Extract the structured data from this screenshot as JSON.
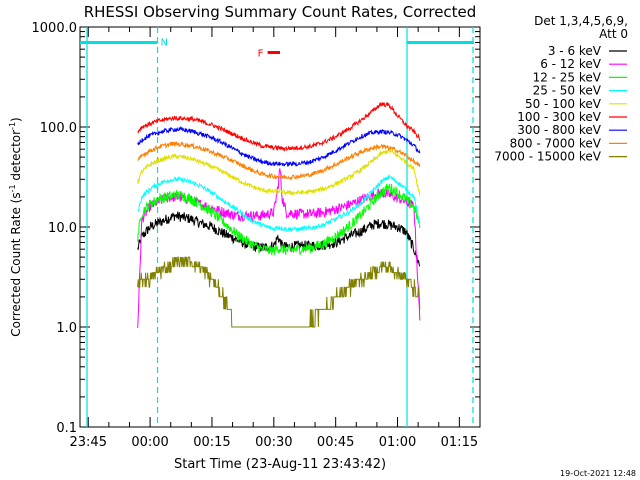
{
  "chart_data": {
    "type": "line",
    "title": "RHESSI Observing Summary Count Rates, Corrected",
    "xlabel": "Start Time (23-Aug-11 23:43:42)",
    "ylabel_main": "Corrected Count Rate (s",
    "ylabel_sup1": "-1",
    "ylabel_mid": " detector",
    "ylabel_sup2": "-1",
    "ylabel_end": ")",
    "ylabel": "Corrected Count Rate (s-1 detector-1)",
    "yscale": "log",
    "ylim": [
      0.1,
      1000
    ],
    "xlim_minutes": [
      -17,
      80
    ],
    "x_ticks": [
      {
        "minute": -15,
        "label": "23:45"
      },
      {
        "minute": 0,
        "label": "00:00"
      },
      {
        "minute": 15,
        "label": "00:15"
      },
      {
        "minute": 30,
        "label": "00:30"
      },
      {
        "minute": 45,
        "label": "00:45"
      },
      {
        "minute": 60,
        "label": "01:00"
      },
      {
        "minute": 75,
        "label": "01:15"
      }
    ],
    "y_ticks": [
      {
        "value": 0.1,
        "label": "0.1"
      },
      {
        "value": 1,
        "label": "1.0"
      },
      {
        "value": 10,
        "label": "10.0"
      },
      {
        "value": 100,
        "label": "100.0"
      },
      {
        "value": 1000,
        "label": "1000.0"
      }
    ],
    "legend_header": [
      "Det 1,3,4,5,6,9,",
      "Att 0"
    ],
    "legend_position": "right",
    "series": [
      {
        "name": "3 - 6 keV",
        "color": "#000000",
        "x": [
          -3,
          -2,
          0,
          2,
          4,
          6,
          8,
          10,
          12,
          15,
          18,
          21,
          24,
          27,
          30,
          31,
          32,
          33,
          36,
          39,
          42,
          45,
          48,
          51,
          54,
          56,
          58,
          60,
          62,
          64,
          65.5
        ],
        "y": [
          6,
          8,
          10,
          11,
          12,
          13,
          12.5,
          12,
          11,
          10,
          8.5,
          7.5,
          6.5,
          6.2,
          6.5,
          8,
          6.5,
          6.3,
          6.5,
          6.5,
          6.6,
          7,
          8,
          9,
          10.5,
          11,
          10.5,
          10,
          9,
          6,
          4
        ]
      },
      {
        "name": "6 - 12 keV",
        "color": "#ff00ff",
        "x": [
          -3,
          -2,
          0,
          2,
          4,
          6,
          8,
          10,
          12,
          15,
          18,
          21,
          24,
          27,
          30,
          31,
          31.5,
          32,
          33,
          36,
          39,
          42,
          45,
          48,
          51,
          54,
          56,
          58,
          60,
          62,
          64,
          65.5
        ],
        "y": [
          1,
          12,
          16,
          18,
          19.5,
          20,
          19.5,
          18.5,
          17,
          15.5,
          14,
          13,
          13,
          13,
          14,
          25,
          40,
          20,
          14,
          13.5,
          13.5,
          14,
          15,
          16.5,
          18.5,
          21,
          22,
          21,
          19.5,
          18,
          16,
          1
        ]
      },
      {
        "name": "12 - 25 keV",
        "color": "#00ff00",
        "x": [
          -3,
          -2,
          0,
          2,
          4,
          6,
          8,
          10,
          12,
          15,
          18,
          21,
          24,
          27,
          30,
          31,
          32,
          33,
          36,
          39,
          42,
          45,
          48,
          51,
          54,
          56,
          58,
          60,
          62,
          64,
          65.5
        ],
        "y": [
          8,
          14,
          17,
          19,
          20,
          21,
          20.5,
          19,
          17,
          14,
          11,
          8.5,
          7,
          6,
          5.8,
          6.2,
          6,
          5.8,
          6,
          6.2,
          6.8,
          8,
          10,
          13,
          18,
          22,
          25,
          22,
          19,
          16,
          10
        ]
      },
      {
        "name": "25 - 50 keV",
        "color": "#00ffff",
        "x": [
          -3,
          -2,
          0,
          2,
          4,
          6,
          8,
          10,
          12,
          15,
          18,
          21,
          24,
          27,
          30,
          31,
          32,
          33,
          36,
          39,
          42,
          45,
          48,
          51,
          54,
          56,
          58,
          60,
          62,
          64,
          65.5
        ],
        "y": [
          14,
          20,
          24,
          27,
          29,
          30,
          29.5,
          28,
          26,
          22,
          18,
          15,
          12,
          10.5,
          9.5,
          10,
          9.7,
          9.5,
          9.5,
          9.8,
          10.5,
          12,
          14,
          17,
          23,
          28,
          32,
          28,
          24,
          20,
          10
        ]
      },
      {
        "name": "50 - 100 keV",
        "color": "#e0e000",
        "x": [
          -3,
          -2,
          0,
          2,
          4,
          6,
          8,
          10,
          12,
          15,
          18,
          21,
          24,
          27,
          30,
          31,
          32,
          33,
          36,
          39,
          42,
          45,
          48,
          51,
          54,
          56,
          58,
          60,
          62,
          64,
          65.5
        ],
        "y": [
          28,
          36,
          42,
          46,
          49,
          51,
          50,
          48,
          45,
          40,
          35,
          30,
          26,
          23.5,
          22.5,
          23,
          22.5,
          22,
          22,
          22.5,
          24,
          27,
          31,
          37,
          46,
          54,
          58,
          52,
          45,
          38,
          20
        ]
      },
      {
        "name": "100 - 300 keV",
        "color": "#ff0000",
        "x": [
          -3,
          -2,
          0,
          2,
          4,
          6,
          8,
          10,
          12,
          15,
          18,
          21,
          24,
          27,
          30,
          31,
          32,
          33,
          36,
          39,
          42,
          45,
          48,
          51,
          54,
          56,
          58,
          60,
          62,
          64,
          65.5
        ],
        "y": [
          90,
          100,
          108,
          115,
          120,
          123,
          122,
          120,
          115,
          105,
          93,
          82,
          72,
          65,
          62,
          62,
          61,
          61,
          62,
          64,
          70,
          80,
          95,
          115,
          145,
          170,
          165,
          130,
          105,
          90,
          75
        ]
      },
      {
        "name": "300 - 800 keV",
        "color": "#0000ff",
        "x": [
          -3,
          -2,
          0,
          2,
          4,
          6,
          8,
          10,
          12,
          15,
          18,
          21,
          24,
          27,
          30,
          31,
          32,
          33,
          36,
          39,
          42,
          45,
          48,
          51,
          54,
          56,
          58,
          60,
          62,
          64,
          65.5
        ],
        "y": [
          65,
          75,
          82,
          88,
          92,
          95,
          94,
          91,
          86,
          78,
          68,
          58,
          50,
          45,
          43,
          43,
          42.5,
          42.5,
          43,
          45,
          50,
          58,
          68,
          80,
          88,
          90,
          88,
          84,
          75,
          65,
          55
        ]
      },
      {
        "name": "800 - 7000 keV",
        "color": "#ff8000",
        "x": [
          -3,
          -2,
          0,
          2,
          4,
          6,
          8,
          10,
          12,
          15,
          18,
          21,
          24,
          27,
          30,
          31,
          32,
          33,
          36,
          39,
          42,
          45,
          48,
          51,
          54,
          56,
          58,
          60,
          62,
          64,
          65.5
        ],
        "y": [
          45,
          52,
          58,
          63,
          66,
          68,
          67,
          65,
          62,
          56,
          50,
          44,
          38,
          34,
          32,
          32,
          31.5,
          31.5,
          32,
          33.5,
          37,
          42,
          49,
          56,
          62,
          64,
          62,
          58,
          52,
          45,
          40
        ]
      },
      {
        "name": "7000 - 15000 keV",
        "color": "#808000",
        "x": [
          -3,
          -2,
          0,
          2,
          4,
          6,
          8,
          10,
          12,
          15,
          18,
          19,
          20,
          21,
          24,
          27,
          30,
          32,
          33,
          36,
          39,
          42,
          45,
          48,
          51,
          54,
          56,
          58,
          60,
          62,
          64,
          65.5
        ],
        "y": [
          2.5,
          3,
          3,
          3.5,
          4,
          4.5,
          4.5,
          4.5,
          4,
          3,
          2,
          1.5,
          1,
          1,
          1,
          1,
          1,
          1,
          0.8,
          1,
          1.2,
          1.5,
          2,
          2.5,
          3,
          3.5,
          4,
          4,
          3.5,
          3,
          2.5,
          2
        ]
      }
    ],
    "annotations": {
      "attenuator_lines_minutes": [
        -15.3,
        1.8,
        62.3,
        78.3
      ],
      "night_bars": [
        {
          "from": -17,
          "to": 1.8,
          "value": 700,
          "label": "N"
        },
        {
          "from": 62.3,
          "to": 78.5,
          "value": 700,
          "label": ""
        }
      ],
      "flare_marker": {
        "label": "F",
        "from": 28.5,
        "to": 31.5,
        "value": 700
      },
      "colors": {
        "attenuator": "#00e0e0",
        "night": "#00e0e0",
        "flare": "#ff0000"
      }
    },
    "grid": false
  },
  "footer": {
    "date": "19-Oct-2021 12:48"
  }
}
